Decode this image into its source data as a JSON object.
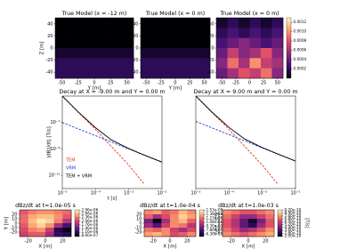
{
  "chart_data": [
    {
      "type": "heatmap",
      "title": "True Model (x = -12 m)",
      "xlabel": "Y [m]",
      "ylabel": "Z [m]",
      "xlim": [
        -60,
        60
      ],
      "ylim": [
        -50,
        50
      ],
      "xticks": [
        -50,
        -25,
        0,
        25,
        50
      ],
      "yticks": [
        40,
        20,
        0,
        -20,
        -40
      ],
      "colormap": [
        "#000004",
        "#3b0f70",
        "#8c2981",
        "#de4968",
        "#fe9f6d",
        "#fcfdbf"
      ],
      "zlim": [
        0,
        0.0013
      ],
      "z": [
        [
          0,
          0,
          0,
          0,
          0,
          0
        ],
        [
          0,
          0,
          0,
          0,
          0,
          0
        ],
        [
          0,
          0,
          0,
          0,
          0,
          0
        ],
        [
          0.0001,
          0.0001,
          0.0001,
          0.0001,
          0.0001,
          0.0001
        ],
        [
          0.0002,
          0.0002,
          0.0002,
          0.0002,
          0.0002,
          0.0002
        ],
        [
          0.0002,
          0.0002,
          0.0002,
          0.0002,
          0.0002,
          0.0002
        ]
      ]
    },
    {
      "type": "heatmap",
      "title": "True Model (x = 0 m)",
      "xlabel": "Y [m]",
      "xlim": [
        -60,
        60
      ],
      "ylim": [
        -50,
        50
      ],
      "xticks": [
        -50,
        -25,
        0,
        25,
        50
      ],
      "yticks": [
        40,
        20,
        0,
        -20,
        -40
      ],
      "colormap": [
        "#000004",
        "#3b0f70",
        "#8c2981",
        "#de4968",
        "#fe9f6d",
        "#fcfdbf"
      ],
      "zlim": [
        0,
        0.0013
      ],
      "z": [
        [
          0,
          0,
          0,
          0,
          0,
          0
        ],
        [
          0,
          0,
          0,
          0,
          0,
          0
        ],
        [
          0,
          0,
          0,
          0,
          0,
          0
        ],
        [
          0.0001,
          0.0001,
          0.0001,
          0.0001,
          0.0001,
          0.0001
        ],
        [
          0.0002,
          0.0002,
          0.0002,
          0.0002,
          0.0002,
          0.0002
        ],
        [
          0.0002,
          0.0002,
          0.0002,
          0.0002,
          0.0002,
          0.0002
        ]
      ]
    },
    {
      "type": "heatmap",
      "title": "True Model (x = 0 m)",
      "xlim": [
        -60,
        60
      ],
      "ylim": [
        -50,
        50
      ],
      "xticks": [
        -50,
        -25,
        0,
        25,
        50
      ],
      "yticks": [
        40,
        20,
        0,
        -20,
        -40
      ],
      "colormap": [
        "#000004",
        "#3b0f70",
        "#8c2981",
        "#de4968",
        "#fe9f6d",
        "#fcfdbf"
      ],
      "zlim": [
        0,
        0.0013
      ],
      "z": [
        [
          0.0001,
          0.0002,
          0.0001,
          0.0002,
          0.0001,
          0.0002
        ],
        [
          0.0002,
          0.0003,
          0.0002,
          0.0003,
          0.0002,
          0.0003
        ],
        [
          0.0003,
          0.0004,
          0.0005,
          0.0004,
          0.0003,
          0.0004
        ],
        [
          0.0004,
          0.0007,
          0.0005,
          0.0006,
          0.0008,
          0.0005
        ],
        [
          0.0005,
          0.0009,
          0.0006,
          0.001,
          0.0007,
          0.0006
        ],
        [
          0.0004,
          0.0006,
          0.0008,
          0.0007,
          0.0009,
          0.0005
        ]
      ],
      "colorbar_ticks": [
        0.0012,
        {
          "value": 0.001,
          "label": "0.0010"
        },
        0.0008,
        0.0006,
        0.0004,
        0.0002
      ]
    },
    {
      "type": "line",
      "title": "Decay at X = -9.00 m and Y = 0.00 m",
      "xlabel": "t [s]",
      "ylabel": "|dBz/dt| [T/s]",
      "xscale": "log",
      "yscale": "log",
      "xlim": [
        1e-05,
        0.01
      ],
      "ylim": [
        1e-12,
        1e-05
      ],
      "xticks": [
        {
          "value": 1e-05,
          "label": "10⁻⁵"
        },
        {
          "value": 0.0001,
          "label": "10⁻⁴"
        },
        {
          "value": 0.001,
          "label": "10⁻³"
        },
        {
          "value": 0.01,
          "label": "10⁻²"
        }
      ],
      "yticks": [
        {
          "value": 1e-11,
          "label": "10⁻¹¹"
        },
        {
          "value": 1e-09,
          "label": "10⁻⁹"
        },
        {
          "value": 1e-07,
          "label": "10⁻⁷"
        }
      ],
      "x": [
        1e-05,
        3e-05,
        0.0001,
        0.0003,
        0.001,
        0.003,
        0.01
      ],
      "series": [
        {
          "name": "TEM",
          "color": "#e8351e",
          "dash": true,
          "values": [
            1e-05,
            6e-07,
            3e-08,
            1.5e-09,
            6e-11,
            2e-12,
            null
          ]
        },
        {
          "name": "VRM",
          "color": "#1f3fd6",
          "dash": true,
          "values": [
            1e-07,
            3.3e-08,
            1e-08,
            3.3e-09,
            1e-09,
            3.3e-10,
            1e-10
          ]
        },
        {
          "name": "TEM + VRM",
          "color": "#000000",
          "dash": false,
          "values": [
            1.01e-05,
            6.3e-07,
            4e-08,
            4.8e-09,
            1.06e-09,
            3.3e-10,
            1e-10
          ]
        }
      ],
      "legend": "lower left"
    },
    {
      "type": "line",
      "title": "Decay at X = 9.00 m and Y = 0.00 m",
      "xscale": "log",
      "yscale": "log",
      "xlim": [
        1e-05,
        0.01
      ],
      "ylim": [
        1e-12,
        1e-05
      ],
      "xticks": [
        {
          "value": 1e-05,
          "label": "10⁻⁵"
        },
        {
          "value": 0.0001,
          "label": "10⁻⁴"
        },
        {
          "value": 0.001,
          "label": "10⁻³"
        },
        {
          "value": 0.01,
          "label": "10⁻²"
        }
      ],
      "x": [
        1e-05,
        3e-05,
        0.0001,
        0.0003,
        0.001,
        0.003,
        0.01
      ],
      "series": [
        {
          "name": "TEM",
          "color": "#e8351e",
          "dash": true,
          "values": [
            1e-05,
            6e-07,
            3e-08,
            1.5e-09,
            6e-11,
            2e-12,
            null
          ]
        },
        {
          "name": "VRM",
          "color": "#1f3fd6",
          "dash": true,
          "values": [
            1.2e-07,
            4e-08,
            1.2e-08,
            4e-09,
            1.2e-09,
            4e-10,
            1.2e-10
          ]
        },
        {
          "name": "TEM + VRM",
          "color": "#000000",
          "dash": false,
          "values": [
            1.01e-05,
            6.4e-07,
            4.2e-08,
            5.5e-09,
            1.26e-09,
            4e-10,
            1.2e-10
          ]
        }
      ]
    },
    {
      "type": "heatmap",
      "title": "dBz/dt at t=1.0e-05 s",
      "xlabel": "X [m]",
      "ylabel": "Y [m]",
      "xlim": [
        -30,
        30
      ],
      "ylim": [
        -30,
        30
      ],
      "xticks": [
        -20,
        0,
        20
      ],
      "yticks": [
        20,
        10,
        0,
        -10,
        -20
      ],
      "colormap": [
        "#000004",
        "#3b0f70",
        "#8c2981",
        "#de4968",
        "#fe9f6d",
        "#fcfdbf"
      ],
      "zlim": [
        8e-07,
        3e-06
      ],
      "z": [
        [
          2.2e-06,
          2.4e-06,
          2.5e-06,
          2.5e-06,
          2.4e-06,
          2.3e-06
        ],
        [
          2.3e-06,
          2.6e-06,
          2.7e-06,
          2.7e-06,
          2.5e-06,
          2.2e-06
        ],
        [
          2.3e-06,
          2.7e-06,
          2.9e-06,
          2.8e-06,
          2.4e-06,
          1.9e-06
        ],
        [
          2.2e-06,
          2.6e-06,
          2.8e-06,
          2.5e-06,
          1.8e-06,
          1.3e-06
        ],
        [
          2.1e-06,
          2.4e-06,
          2.5e-06,
          2e-06,
          1.1e-06,
          9e-07
        ],
        [
          2e-06,
          2.2e-06,
          2.2e-06,
          1.8e-06,
          1.2e-06,
          1.1e-06
        ]
      ],
      "colorbar_ticks": [
        {
          "value": 2.96e-06,
          "label": "2.96e-06"
        },
        {
          "value": 2.66e-06,
          "label": "2.66e-06"
        },
        {
          "value": 2.36e-06,
          "label": "2.36e-06"
        },
        {
          "value": 2.06e-06,
          "label": "2.06e-06"
        },
        {
          "value": 1.76e-06,
          "label": "1.76e-06"
        },
        {
          "value": 1.46e-06,
          "label": "1.46e-06"
        },
        {
          "value": 1.16e-06,
          "label": "1.16e-06"
        },
        {
          "value": 8.6e-07,
          "label": "8.60e-07"
        }
      ]
    },
    {
      "type": "heatmap",
      "title": "dBz/dt at t=1.0e-04 s",
      "xlabel": "X [m]",
      "xlim": [
        -30,
        30
      ],
      "ylim": [
        -30,
        30
      ],
      "xticks": [
        -20,
        0,
        20
      ],
      "yticks": [
        20,
        10,
        0,
        -10,
        -20
      ],
      "colormap": [
        "#000004",
        "#3b0f70",
        "#8c2981",
        "#de4968",
        "#fe9f6d",
        "#fcfdbf"
      ],
      "zlim": [
        5.5e-09,
        1.55e-08
      ],
      "z": [
        [
          1.3e-08,
          1.35e-08,
          1.2e-08,
          1.25e-08,
          1.4e-08,
          1.3e-08
        ],
        [
          1.2e-08,
          1e-08,
          1.15e-08,
          1.3e-08,
          1.45e-08,
          1.35e-08
        ],
        [
          9e-09,
          6e-09,
          1e-08,
          1.3e-08,
          1.4e-08,
          1.2e-08
        ],
        [
          1e-08,
          8e-09,
          1.1e-08,
          1.3e-08,
          1.25e-08,
          1.05e-08
        ],
        [
          1.25e-08,
          1.2e-08,
          1.3e-08,
          1.1e-08,
          1e-08,
          1.15e-08
        ],
        [
          1.35e-08,
          1.4e-08,
          1.3e-08,
          1.15e-08,
          1.2e-08,
          1.3e-08
        ]
      ],
      "colorbar_ticks": [
        {
          "value": 1.53e-08,
          "label": "1.53e-08"
        },
        {
          "value": 1.38e-08,
          "label": "1.38e-08"
        },
        {
          "value": 1.23e-08,
          "label": "1.23e-08"
        },
        {
          "value": 1.08e-08,
          "label": "1.08e-08"
        },
        {
          "value": 9.3e-09,
          "label": "9.30e-09"
        },
        {
          "value": 7.8e-09,
          "label": "7.80e-09"
        },
        {
          "value": 6.3e-09,
          "label": "6.30e-09"
        }
      ]
    },
    {
      "type": "heatmap",
      "title": "dBz/dt at t=1.0e-03 s",
      "xlabel": "X [m]",
      "xlim": [
        -30,
        30
      ],
      "ylim": [
        -30,
        30
      ],
      "xticks": [
        -20,
        0,
        20
      ],
      "yticks": [
        20,
        10,
        0,
        -10,
        -20
      ],
      "colormap": [
        "#000004",
        "#3b0f70",
        "#8c2981",
        "#de4968",
        "#fe9f6d",
        "#fcfdbf"
      ],
      "zlim": [
        1.9e-10,
        9.3e-10
      ],
      "z": [
        [
          7.5e-10,
          7e-10,
          6.5e-10,
          6.5e-10,
          7e-10,
          7.5e-10
        ],
        [
          7e-10,
          6e-10,
          5e-10,
          5e-10,
          6e-10,
          7e-10
        ],
        [
          6.5e-10,
          5.5e-10,
          4e-10,
          2.5e-10,
          4.5e-10,
          6.5e-10
        ],
        [
          6.5e-10,
          5.5e-10,
          4e-10,
          3e-10,
          5e-10,
          6.5e-10
        ],
        [
          7e-10,
          6e-10,
          5e-10,
          5.5e-10,
          6.5e-10,
          7.5e-10
        ],
        [
          7.5e-10,
          7e-10,
          6.5e-10,
          7e-10,
          7.5e-10,
          8e-10
        ]
      ],
      "colorbar_ticks": [
        {
          "value": 9.2e-10,
          "label": "9.20e-10"
        },
        {
          "value": 8.4e-10,
          "label": "8.40e-10"
        },
        {
          "value": 7.6e-10,
          "label": "7.60e-10"
        },
        {
          "value": 6.8e-10,
          "label": "6.80e-10"
        },
        {
          "value": 6e-10,
          "label": "6.00e-10"
        },
        {
          "value": 5.2e-10,
          "label": "5.20e-10"
        },
        {
          "value": 4.4e-10,
          "label": "4.40e-10"
        },
        {
          "value": 3.6e-10,
          "label": "3.60e-10"
        },
        {
          "value": 2.8e-10,
          "label": "2.80e-10"
        },
        {
          "value": 2e-10,
          "label": "2.00e-10"
        }
      ],
      "colorbar_label": "[T/s]"
    }
  ]
}
